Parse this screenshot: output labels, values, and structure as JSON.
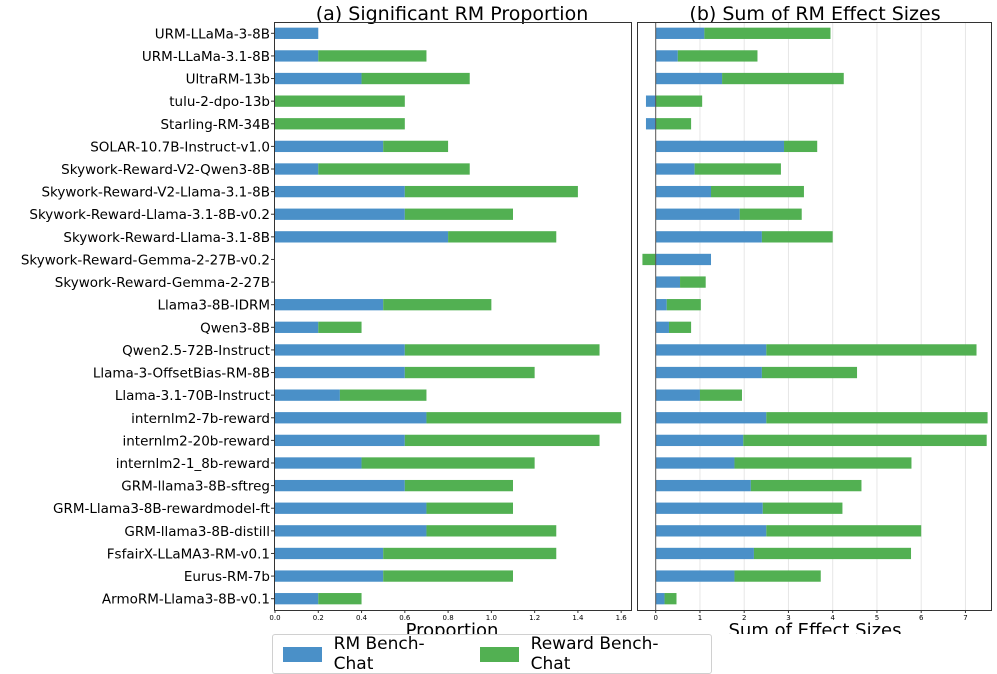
{
  "chart_data": [
    {
      "type": "bar",
      "orientation": "horizontal",
      "stacked": true,
      "title": "(a) Significant RM Proportion",
      "xlabel": "Proportion",
      "xlim": [
        0,
        1.65
      ],
      "xticks": [
        0.0,
        0.2,
        0.4,
        0.6,
        0.8,
        1.0,
        1.2,
        1.4,
        1.6
      ],
      "xtick_labels": [
        "0.0",
        "0.2",
        "0.4",
        "0.6",
        "0.8",
        "1.0",
        "1.2",
        "1.4",
        "1.6"
      ],
      "categories": [
        "URM-LLaMa-3-8B",
        "URM-LLaMa-3.1-8B",
        "UltraRM-13b",
        "tulu-2-dpo-13b",
        "Starling-RM-34B",
        "SOLAR-10.7B-Instruct-v1.0",
        "Skywork-Reward-V2-Qwen3-8B",
        "Skywork-Reward-V2-Llama-3.1-8B",
        "Skywork-Reward-Llama-3.1-8B-v0.2",
        "Skywork-Reward-Llama-3.1-8B",
        "Skywork-Reward-Gemma-2-27B-v0.2",
        "Skywork-Reward-Gemma-2-27B",
        "Llama3-8B-IDRM",
        "Qwen3-8B",
        "Qwen2.5-72B-Instruct",
        "Llama-3-OffsetBias-RM-8B",
        "Llama-3.1-70B-Instruct",
        "internlm2-7b-reward",
        "internlm2-20b-reward",
        "internlm2-1_8b-reward",
        "GRM-llama3-8B-sftreg",
        "GRM-Llama3-8B-rewardmodel-ft",
        "GRM-llama3-8B-distill",
        "FsfairX-LLaMA3-RM-v0.1",
        "Eurus-RM-7b",
        "ArmoRM-Llama3-8B-v0.1"
      ],
      "series": [
        {
          "name": "RM Bench-Chat",
          "values": [
            0.2,
            0.2,
            0.4,
            0.0,
            0.0,
            0.5,
            0.2,
            0.6,
            0.6,
            0.8,
            0.0,
            0.0,
            0.5,
            0.2,
            0.6,
            0.6,
            0.3,
            0.7,
            0.6,
            0.4,
            0.6,
            0.7,
            0.7,
            0.5,
            0.5,
            0.2
          ]
        },
        {
          "name": "Reward Bench-Chat",
          "values": [
            0.0,
            0.5,
            0.5,
            0.6,
            0.6,
            0.3,
            0.7,
            0.8,
            0.5,
            0.5,
            0.0,
            0.0,
            0.5,
            0.2,
            0.9,
            0.6,
            0.4,
            0.9,
            0.9,
            0.8,
            0.5,
            0.4,
            0.6,
            0.8,
            0.6,
            0.2
          ]
        }
      ]
    },
    {
      "type": "bar",
      "orientation": "horizontal",
      "stacked": true,
      "title": "(b) Sum of RM Effect Sizes",
      "xlabel": "Sum of Effect Sizes",
      "xlim": [
        -0.4,
        7.6
      ],
      "xticks": [
        0,
        1,
        2,
        3,
        4,
        5,
        6,
        7
      ],
      "xtick_labels": [
        "0",
        "1",
        "2",
        "3",
        "4",
        "5",
        "6",
        "7"
      ],
      "grid": true,
      "series": [
        {
          "name": "RM Bench-Chat",
          "values": [
            1.1,
            0.5,
            1.5,
            -0.22,
            -0.22,
            2.9,
            0.88,
            1.25,
            1.9,
            2.4,
            1.25,
            0.55,
            0.25,
            0.3,
            2.5,
            2.4,
            1.0,
            2.5,
            1.98,
            1.78,
            2.15,
            2.42,
            2.5,
            2.22,
            1.78,
            0.2
          ]
        },
        {
          "name": "Reward Bench-Chat",
          "values": [
            2.85,
            1.8,
            2.75,
            1.05,
            0.8,
            0.75,
            1.95,
            2.1,
            1.4,
            1.6,
            -0.3,
            0.58,
            0.77,
            0.5,
            4.75,
            2.15,
            0.95,
            5.0,
            5.5,
            4.0,
            2.5,
            1.8,
            3.5,
            3.55,
            1.95,
            0.27
          ]
        }
      ]
    }
  ],
  "legend": {
    "items": [
      {
        "label": "RM Bench-Chat",
        "color": "#4a90c8"
      },
      {
        "label": "Reward Bench-Chat",
        "color": "#52b052"
      }
    ]
  },
  "colors": {
    "rm": "#4a90c8",
    "reward": "#52b052",
    "grid": "#e6e6e6",
    "zero": "#555555"
  }
}
